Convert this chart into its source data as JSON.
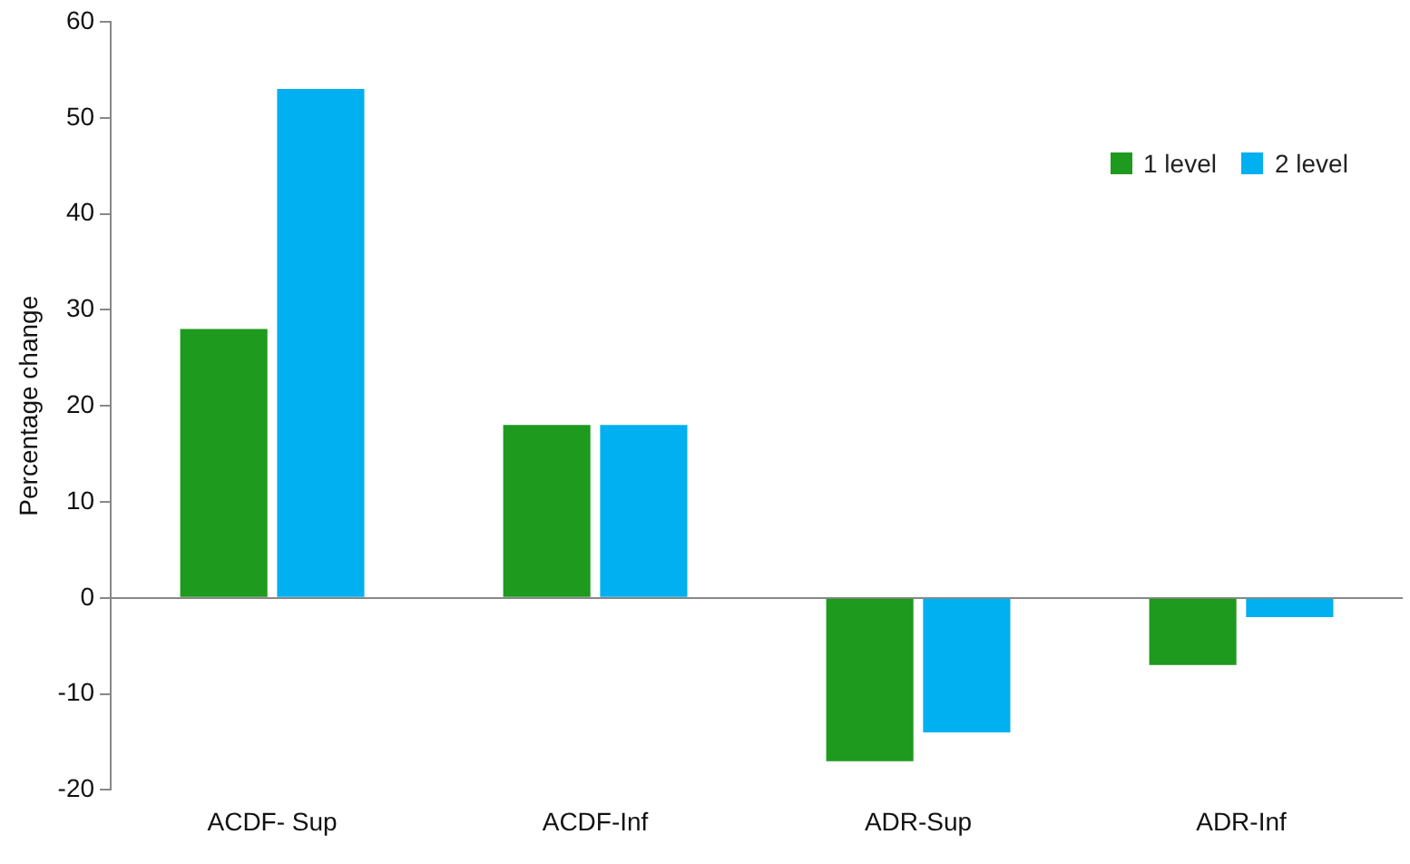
{
  "chart_data": {
    "type": "bar",
    "ylabel": "Percentage change",
    "categories": [
      "ACDF- Sup",
      "ACDF-Inf",
      "ADR-Sup",
      "ADR-Inf"
    ],
    "series": [
      {
        "name": "1 level",
        "color": "#1e9a1e",
        "values": [
          28,
          18,
          -17,
          -7
        ]
      },
      {
        "name": "2 level",
        "color": "#00b0f0",
        "values": [
          53,
          18,
          -14,
          -2
        ]
      }
    ],
    "ylim": [
      -20,
      60
    ],
    "yticks": [
      -20,
      -10,
      0,
      10,
      20,
      30,
      40,
      50,
      60
    ],
    "legend": "top right"
  }
}
